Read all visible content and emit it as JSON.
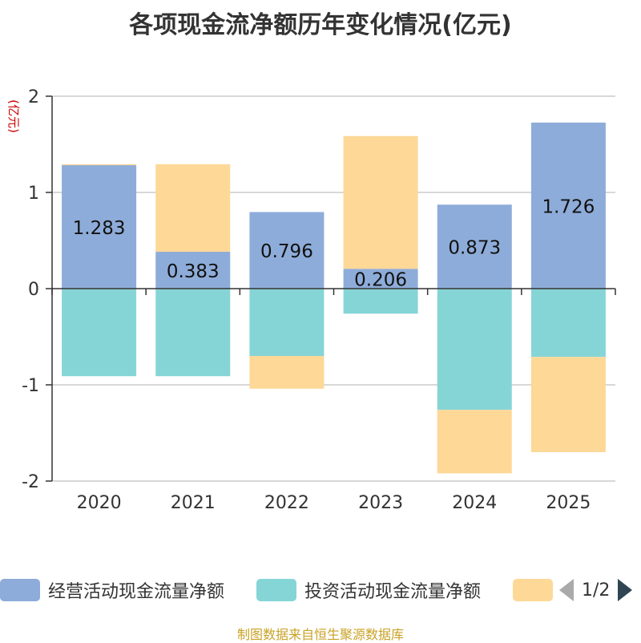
{
  "chart_data": {
    "type": "bar",
    "stacked": true,
    "title": "各项现金流净额历年变化情况(亿元)",
    "ylabel": "(亿元)",
    "xlabel": "",
    "ylim": [
      -2,
      2
    ],
    "yticks": [
      2,
      1,
      0,
      -1,
      -2
    ],
    "categories": [
      "2020",
      "2021",
      "2022",
      "2023",
      "2024",
      "2025"
    ],
    "series": [
      {
        "name": "经营活动现金流量净额",
        "color": "#8eacd9",
        "values": [
          1.283,
          0.383,
          0.796,
          0.206,
          0.873,
          1.726
        ],
        "labels": [
          "1.283",
          "0.383",
          "0.796",
          "0.206",
          "0.873",
          "1.726"
        ]
      },
      {
        "name": "投资活动现金流量净额",
        "color": "#86d5d6",
        "values": [
          -0.91,
          -0.91,
          -0.7,
          -0.26,
          -1.26,
          -0.71
        ]
      },
      {
        "name": "",
        "color": "#fdd897",
        "values": [
          0.01,
          0.91,
          -0.34,
          1.38,
          -0.66,
          -0.99
        ]
      }
    ],
    "legend": {
      "position": "bottom",
      "page": "1/2"
    }
  },
  "footer": "制图数据来自恒生聚源数据库"
}
